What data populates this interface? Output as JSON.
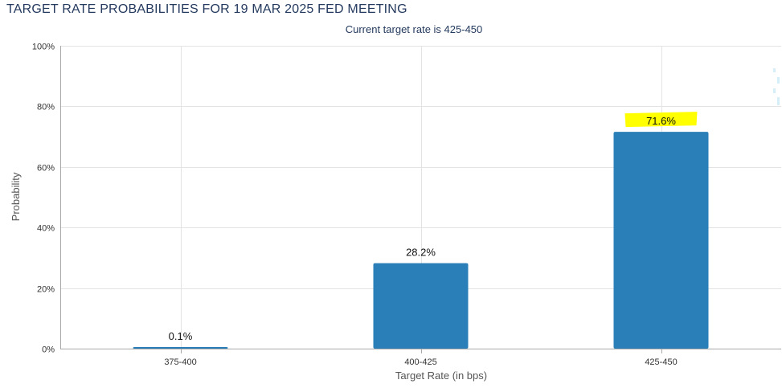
{
  "chart_data": {
    "type": "bar",
    "title": "TARGET RATE PROBABILITIES FOR 19 MAR 2025 FED MEETING",
    "subtitle": "Current target rate is 425-450",
    "xlabel": "Target Rate (in bps)",
    "ylabel": "Probability",
    "categories": [
      "375-400",
      "400-425",
      "425-450"
    ],
    "values": [
      0.1,
      28.2,
      71.6
    ],
    "data_labels": [
      "0.1%",
      "28.2%",
      "71.6%"
    ],
    "y_ticks": [
      0,
      20,
      40,
      60,
      80,
      100
    ],
    "y_tick_labels": [
      "0%",
      "20%",
      "40%",
      "60%",
      "80%",
      "100%"
    ],
    "ylim": [
      0,
      100
    ],
    "grid": true,
    "bar_color": "#2a7fb8",
    "highlighted_label_color": "#ffff00",
    "highlighted_category": "425-450"
  }
}
